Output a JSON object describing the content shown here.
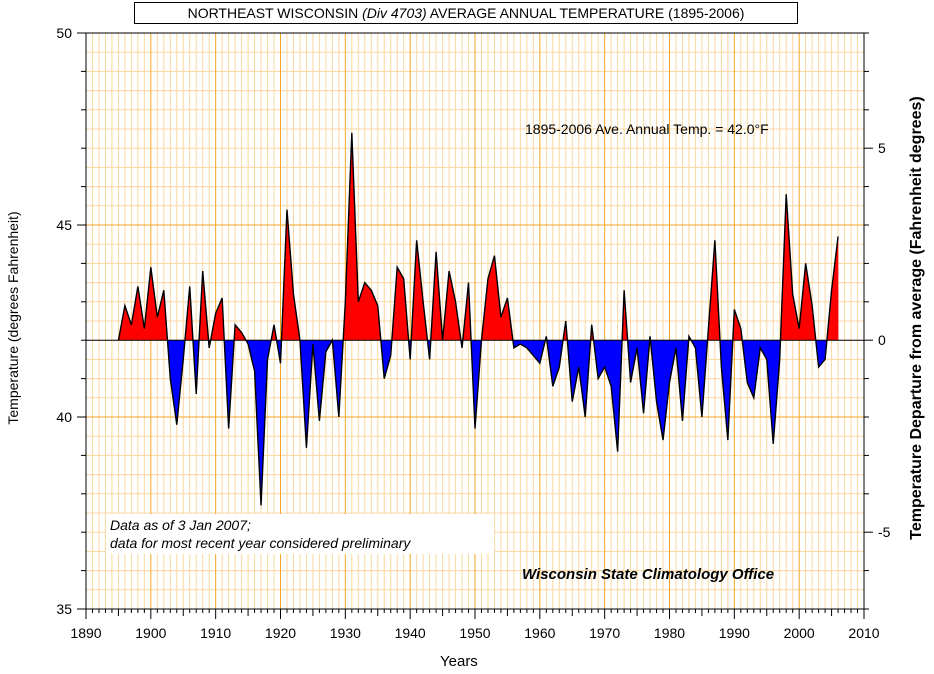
{
  "title": {
    "part1": "NORTHEAST WISCONSIN ",
    "part2": "(Div 4703)",
    "part3": " AVERAGE  ANNUAL TEMPERATURE (1895-2006)"
  },
  "annotations": {
    "average": "1895-2006 Ave. Annual Temp. = 42.0°F",
    "note_line1": "Data as of 3 Jan 2007;",
    "note_line2": "data for most recent year considered preliminary",
    "credit": "Wisconsin State Climatology Office"
  },
  "colors": {
    "above_average": "#ff0000",
    "below_average": "#0000ff",
    "grid_major": "#f5a623",
    "grid_minor": "#fad7a0",
    "line": "#000000"
  },
  "chart_data": {
    "type": "area",
    "xlabel": "Years",
    "ylabel": "Temperature  (degrees Fahrenheit)",
    "y2label": "Temperature Departure from average (Fahrenheit degrees)",
    "xlim": [
      1890,
      2010
    ],
    "ylim": [
      35,
      50
    ],
    "y2lim": [
      -7,
      8
    ],
    "xticks": [
      1890,
      1900,
      1910,
      1920,
      1930,
      1940,
      1950,
      1960,
      1970,
      1980,
      1990,
      2000,
      2010
    ],
    "yticks": [
      35,
      40,
      45,
      50
    ],
    "y2ticks": [
      -5,
      0,
      5
    ],
    "baseline": 42.0,
    "grid": true,
    "series": [
      {
        "x": [
          1895,
          1896,
          1897,
          1898,
          1899,
          1900,
          1901,
          1902,
          1903,
          1904,
          1905,
          1906,
          1907,
          1908,
          1909,
          1910,
          1911,
          1912,
          1913,
          1914,
          1915,
          1916,
          1917,
          1918,
          1919,
          1920,
          1921,
          1922,
          1923,
          1924,
          1925,
          1926,
          1927,
          1928,
          1929,
          1930,
          1931,
          1932,
          1933,
          1934,
          1935,
          1936,
          1937,
          1938,
          1939,
          1940,
          1941,
          1942,
          1943,
          1944,
          1945,
          1946,
          1947,
          1948,
          1949,
          1950,
          1951,
          1952,
          1953,
          1954,
          1955,
          1956,
          1957,
          1958,
          1959,
          1960,
          1961,
          1962,
          1963,
          1964,
          1965,
          1966,
          1967,
          1968,
          1969,
          1970,
          1971,
          1972,
          1973,
          1974,
          1975,
          1976,
          1977,
          1978,
          1979,
          1980,
          1981,
          1982,
          1983,
          1984,
          1985,
          1986,
          1987,
          1988,
          1989,
          1990,
          1991,
          1992,
          1993,
          1994,
          1995,
          1996,
          1997,
          1998,
          1999,
          2000,
          2001,
          2002,
          2003,
          2004,
          2005,
          2006
        ],
        "values": [
          42.0,
          42.9,
          42.4,
          43.4,
          42.3,
          43.9,
          42.6,
          43.3,
          41.0,
          39.8,
          41.5,
          43.4,
          40.6,
          43.8,
          41.8,
          42.7,
          43.1,
          39.7,
          42.4,
          42.2,
          41.9,
          41.2,
          37.7,
          41.5,
          42.4,
          41.4,
          45.4,
          43.2,
          42.0,
          39.2,
          41.9,
          39.9,
          41.7,
          42.0,
          40.0,
          43.0,
          47.4,
          43.0,
          43.5,
          43.3,
          42.9,
          41.0,
          41.6,
          43.9,
          43.6,
          41.5,
          44.6,
          43.0,
          41.5,
          44.3,
          42.0,
          43.8,
          43.0,
          41.8,
          43.5,
          39.7,
          42.0,
          43.6,
          44.2,
          42.6,
          43.1,
          41.8,
          41.9,
          41.8,
          41.6,
          41.4,
          42.1,
          40.8,
          41.3,
          42.5,
          40.4,
          41.3,
          40.0,
          42.4,
          41.0,
          41.3,
          40.8,
          39.1,
          43.3,
          40.9,
          41.8,
          40.1,
          42.1,
          40.4,
          39.4,
          40.9,
          41.8,
          39.9,
          42.1,
          41.8,
          40.0,
          42.3,
          44.6,
          41.3,
          39.4,
          42.8,
          42.3,
          40.9,
          40.5,
          41.8,
          41.5,
          39.3,
          41.5,
          45.8,
          43.2,
          42.3,
          44.0,
          42.9,
          41.3,
          41.5,
          43.3,
          44.7
        ]
      }
    ]
  }
}
